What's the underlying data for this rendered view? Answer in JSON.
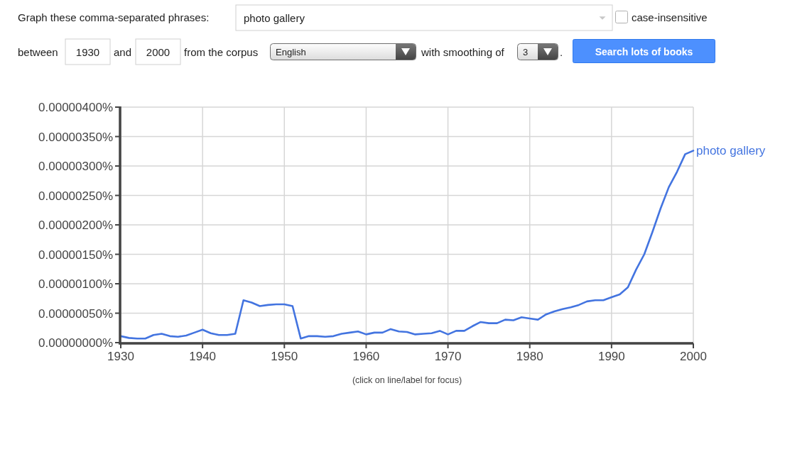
{
  "chart_data": {
    "type": "line",
    "x": [
      1930,
      1931,
      1932,
      1933,
      1934,
      1935,
      1936,
      1937,
      1938,
      1939,
      1940,
      1941,
      1942,
      1943,
      1944,
      1945,
      1946,
      1947,
      1948,
      1949,
      1950,
      1951,
      1952,
      1953,
      1954,
      1955,
      1956,
      1957,
      1958,
      1959,
      1960,
      1961,
      1962,
      1963,
      1964,
      1965,
      1966,
      1967,
      1968,
      1969,
      1970,
      1971,
      1972,
      1973,
      1974,
      1975,
      1976,
      1977,
      1978,
      1979,
      1980,
      1981,
      1982,
      1983,
      1984,
      1985,
      1986,
      1987,
      1988,
      1989,
      1990,
      1991,
      1992,
      1993,
      1994,
      1995,
      1996,
      1997,
      1998,
      1999,
      2000
    ],
    "series": [
      {
        "name": "photo gallery",
        "color": "#4374e0",
        "values": [
          1.1e-07,
          8e-08,
          7e-08,
          7e-08,
          1.3e-07,
          1.5e-07,
          1.1e-07,
          1e-07,
          1.2e-07,
          1.7e-07,
          2.2e-07,
          1.6e-07,
          1.3e-07,
          1.3e-07,
          1.5e-07,
          7.2e-07,
          6.8e-07,
          6.2e-07,
          6.4e-07,
          6.5e-07,
          6.5e-07,
          6.2e-07,
          7e-08,
          1.1e-07,
          1.1e-07,
          1e-07,
          1.1e-07,
          1.5e-07,
          1.7e-07,
          1.9e-07,
          1.4e-07,
          1.7e-07,
          1.7e-07,
          2.3e-07,
          1.9e-07,
          1.8e-07,
          1.4e-07,
          1.5e-07,
          1.6e-07,
          2e-07,
          1.4e-07,
          2e-07,
          2e-07,
          2.8e-07,
          3.5e-07,
          3.3e-07,
          3.3e-07,
          3.9e-07,
          3.8e-07,
          4.3e-07,
          4.1e-07,
          3.9e-07,
          4.8e-07,
          5.3e-07,
          5.7e-07,
          6e-07,
          6.4e-07,
          7e-07,
          7.2e-07,
          7.2e-07,
          7.7e-07,
          8.2e-07,
          9.4e-07,
          1.24e-06,
          1.5e-06,
          1.88e-06,
          2.28e-06,
          2.64e-06,
          2.9e-06,
          3.2e-06,
          3.26e-06
        ]
      }
    ],
    "xlim": [
      1930,
      2000
    ],
    "xticks": [
      1930,
      1940,
      1950,
      1960,
      1970,
      1980,
      1990,
      2000
    ],
    "ylim": [
      0,
      4e-06
    ],
    "yticks": [
      {
        "value": 0,
        "label": "0.00000000%"
      },
      {
        "value": 5e-07,
        "label": "0.00000050%"
      },
      {
        "value": 1e-06,
        "label": "0.00000100%"
      },
      {
        "value": 1.5e-06,
        "label": "0.00000150%"
      },
      {
        "value": 2e-06,
        "label": "0.00000200%"
      },
      {
        "value": 2.5e-06,
        "label": "0.00000250%"
      },
      {
        "value": 3e-06,
        "label": "0.00000300%"
      },
      {
        "value": 3.5e-06,
        "label": "0.00000350%"
      },
      {
        "value": 4e-06,
        "label": "0.00000400%"
      }
    ],
    "grid": true,
    "annotations": [
      "Graph these comma-separated phrases:",
      "photo gallery",
      "case-insensitive",
      "between",
      "1930",
      "and",
      "2000",
      "from the corpus",
      "English",
      "with smoothing of",
      "3",
      ".",
      "Search lots of books",
      "(click on line/label for focus)"
    ]
  }
}
